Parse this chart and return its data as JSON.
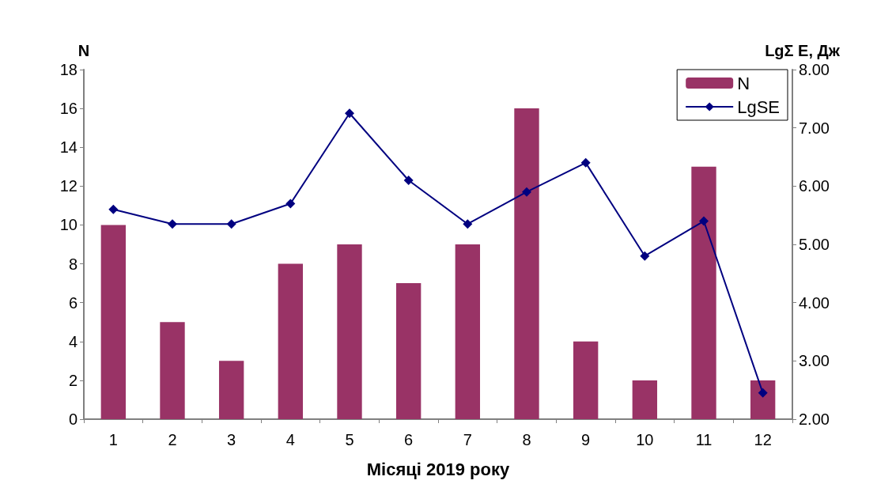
{
  "chart_data": {
    "type": "bar",
    "xlabel": "Місяці 2019 року",
    "ylabel": "N",
    "y2label": "LgΣ E, Дж",
    "categories": [
      "1",
      "2",
      "3",
      "4",
      "5",
      "6",
      "7",
      "8",
      "9",
      "10",
      "11",
      "12"
    ],
    "series": [
      {
        "name": "N",
        "color": "#993366",
        "values": [
          10,
          5,
          3,
          8,
          9,
          7,
          9,
          16,
          4,
          2,
          13,
          2
        ]
      },
      {
        "name": "LgSE",
        "type": "line",
        "axis": "y2",
        "color": "#000080",
        "marker": "diamond",
        "values": [
          5.6,
          5.35,
          5.35,
          5.7,
          7.25,
          6.1,
          5.35,
          5.9,
          6.4,
          4.8,
          5.4,
          2.45
        ]
      }
    ],
    "ylim": [
      0,
      18
    ],
    "yticks": [
      0,
      2,
      4,
      6,
      8,
      10,
      12,
      14,
      16,
      18
    ],
    "y2lim": [
      2,
      8
    ],
    "y2ticks": [
      {
        "value": 2,
        "label": "2.00"
      },
      {
        "value": 3,
        "label": "3.00"
      },
      {
        "value": 4,
        "label": "4.00"
      },
      {
        "value": 5,
        "label": "5.00"
      },
      {
        "value": 6,
        "label": "6.00"
      },
      {
        "value": 7,
        "label": "7.00"
      },
      {
        "value": 8,
        "label": "8.00"
      }
    ],
    "legend": "top right",
    "grid": false
  }
}
